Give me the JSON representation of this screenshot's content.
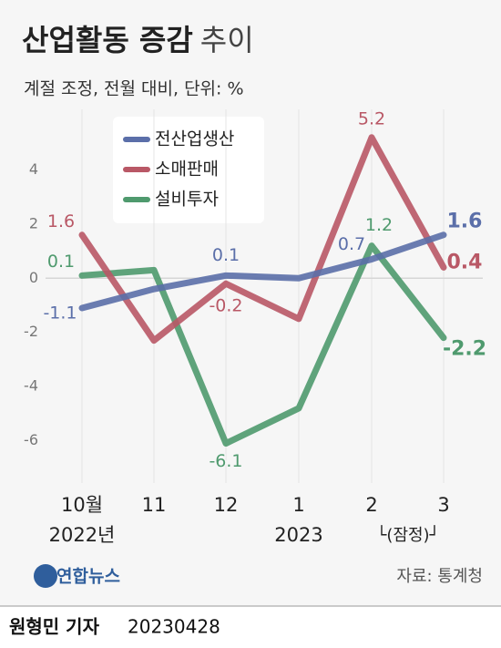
{
  "chart_data": {
    "type": "line",
    "title": "산업활동 증감",
    "title_suffix": "추이",
    "subtitle": "계절 조정, 전월 대비, 단위: %",
    "categories": [
      "10월",
      "11",
      "12",
      "1",
      "2",
      "3"
    ],
    "x_group_labels": [
      "2022년",
      "2023",
      "└(잠정)┘"
    ],
    "series": [
      {
        "name": "전산업생산",
        "color": "#5b6fa9",
        "values": [
          -1.1,
          -0.4,
          0.1,
          0.0,
          0.7,
          1.6
        ],
        "value_labels": [
          "-1.1",
          null,
          "0.1",
          null,
          "0.7",
          "1.6"
        ]
      },
      {
        "name": "소매판매",
        "color": "#b95866",
        "values": [
          1.6,
          -2.3,
          -0.2,
          -1.5,
          5.2,
          0.4
        ],
        "value_labels": [
          "1.6",
          null,
          "-0.2",
          null,
          "5.2",
          "0.4"
        ]
      },
      {
        "name": "설비투자",
        "color": "#4f9a6e",
        "values": [
          0.1,
          0.3,
          -6.1,
          -4.8,
          1.2,
          -2.2
        ],
        "value_labels": [
          "0.1",
          null,
          "-6.1",
          null,
          "1.2",
          "-2.2"
        ]
      }
    ],
    "ylim": [
      -8,
      6
    ],
    "yticks": [
      -6,
      -4,
      -2,
      0,
      2,
      4
    ],
    "source": "자료: 통계청",
    "logo": "연합뉴스",
    "byline": "원형민 기자",
    "date": "20230428"
  }
}
